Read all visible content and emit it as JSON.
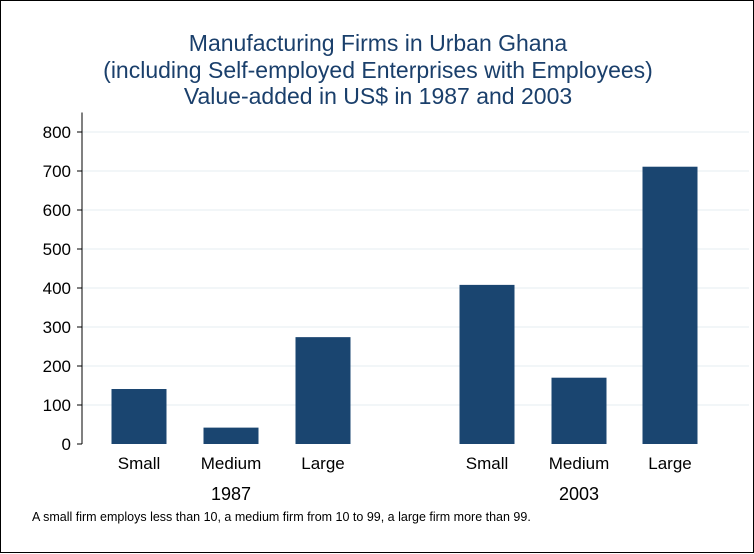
{
  "title_lines": [
    "Manufacturing Firms in Urban Ghana",
    "(including Self-employed Enterprises with Employees)",
    "Value-added in US$ in 1987 and 2003"
  ],
  "note": "A small firm employs less than 10, a medium firm from 10 to 99, a large firm more than 99.",
  "colors": {
    "bar": "#1a4570",
    "title": "#1a3f6b",
    "grid": "#e6ecf0"
  },
  "chart_data": {
    "type": "bar",
    "title": "Manufacturing Firms in Urban Ghana (including Self-employed Enterprises with Employees) Value-added in US$ in 1987 and 2003",
    "ylabel": "",
    "xlabel": "",
    "ylim": [
      0,
      850
    ],
    "yticks": [
      0,
      100,
      200,
      300,
      400,
      500,
      600,
      700,
      800
    ],
    "grid": true,
    "groups": [
      {
        "label": "1987",
        "categories": [
          "Small",
          "Medium",
          "Large"
        ],
        "values": [
          141,
          42,
          274
        ]
      },
      {
        "label": "2003",
        "categories": [
          "Small",
          "Medium",
          "Large"
        ],
        "values": [
          408,
          170,
          711
        ]
      }
    ]
  }
}
